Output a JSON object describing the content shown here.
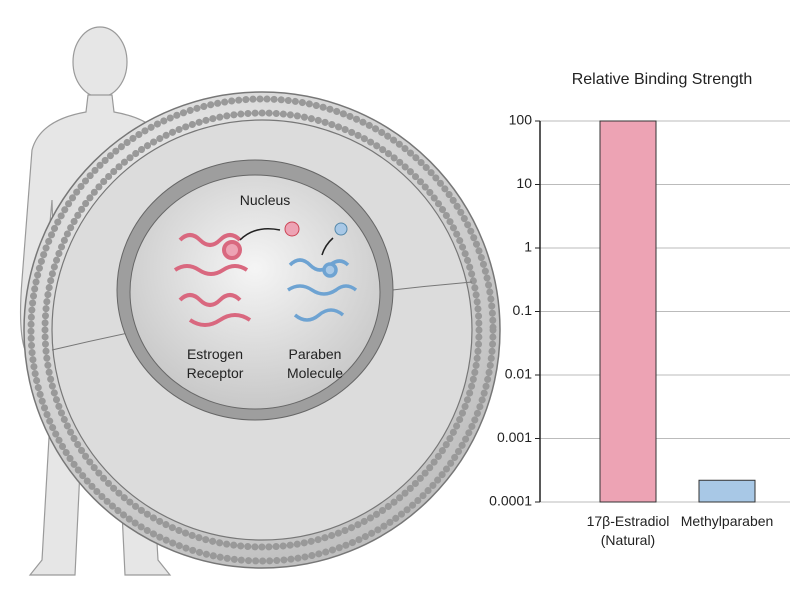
{
  "chart_data": {
    "type": "bar",
    "title": "Relative Binding Strength",
    "categories": [
      "17β-Estradiol (Natural)",
      "Methylparaben"
    ],
    "values": [
      100,
      0.00022
    ],
    "colors": [
      "#eda3b4",
      "#a8c8e6"
    ],
    "log_scale": true,
    "ylim": [
      0.0001,
      100
    ],
    "yticks": [
      0.0001,
      0.001,
      0.01,
      0.1,
      1,
      10,
      100
    ],
    "grid": true,
    "annotations": [
      "Nucleus",
      "Estrogen Receptor",
      "Paraben Molecule"
    ]
  }
}
